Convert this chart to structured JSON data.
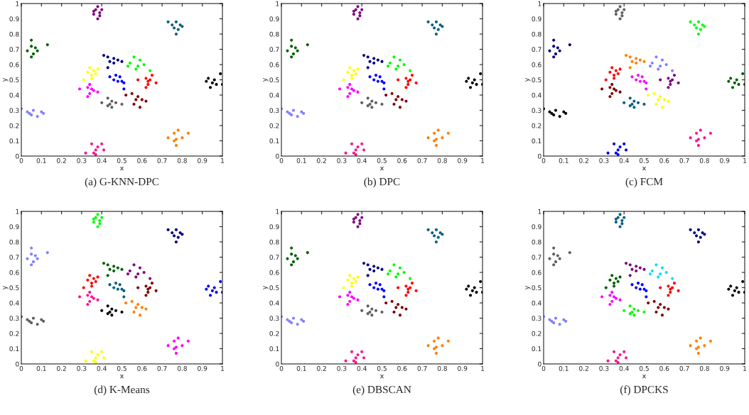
{
  "chart_data": [
    {
      "type": "scatter",
      "title": "(a) G-KNN-DPC",
      "xlabel": "x",
      "ylabel": "y",
      "xlim": [
        0,
        1
      ],
      "ylim": [
        0,
        1
      ],
      "xticks": [
        0,
        0.1,
        0.2,
        0.3,
        0.4,
        0.5,
        0.6,
        0.7,
        0.8,
        0.9,
        1
      ],
      "yticks": [
        0,
        0.1,
        0.2,
        0.3,
        0.4,
        0.5,
        0.6,
        0.7,
        0.8,
        0.9,
        1
      ],
      "marker": "circle",
      "grid": false,
      "legend": false,
      "series": [
        {
          "color": "#800080",
          "x": [
            0.36,
            0.37,
            0.38,
            0.39,
            0.4,
            0.38,
            0.36,
            0.39
          ],
          "values": [
            0.93,
            0.96,
            0.98,
            0.94,
            0.96,
            0.9,
            0.95,
            0.92
          ]
        },
        {
          "color": "#006080",
          "x": [
            0.75,
            0.76,
            0.77,
            0.78,
            0.79,
            0.77,
            0.73,
            0.8
          ],
          "values": [
            0.86,
            0.84,
            0.88,
            0.83,
            0.86,
            0.8,
            0.88,
            0.85
          ]
        },
        {
          "color": "#006000",
          "x": [
            0.03,
            0.05,
            0.06,
            0.07,
            0.08,
            0.05,
            0.05,
            0.13
          ],
          "values": [
            0.69,
            0.72,
            0.67,
            0.71,
            0.69,
            0.65,
            0.76,
            0.73
          ]
        },
        {
          "color": "#000080",
          "x": [
            0.41,
            0.43,
            0.44,
            0.46,
            0.48,
            0.43,
            0.46,
            0.5
          ],
          "values": [
            0.66,
            0.65,
            0.62,
            0.64,
            0.63,
            0.58,
            0.61,
            0.62
          ]
        },
        {
          "color": "#00ff00",
          "x": [
            0.54,
            0.56,
            0.58,
            0.59,
            0.61,
            0.57,
            0.53,
            0.64
          ],
          "values": [
            0.61,
            0.65,
            0.59,
            0.63,
            0.6,
            0.57,
            0.59,
            0.56
          ]
        },
        {
          "color": "#ffff00",
          "x": [
            0.33,
            0.34,
            0.35,
            0.36,
            0.37,
            0.35,
            0.38,
            0.31
          ],
          "values": [
            0.55,
            0.58,
            0.53,
            0.56,
            0.54,
            0.51,
            0.57,
            0.5
          ]
        },
        {
          "color": "#0000ff",
          "x": [
            0.44,
            0.46,
            0.48,
            0.49,
            0.51,
            0.47,
            0.5,
            0.51
          ],
          "values": [
            0.52,
            0.5,
            0.49,
            0.52,
            0.48,
            0.53,
            0.49,
            0.44
          ]
        },
        {
          "color": "#ff0000",
          "x": [
            0.58,
            0.62,
            0.63,
            0.64,
            0.67,
            0.62,
            0.65,
            0.63
          ],
          "values": [
            0.5,
            0.51,
            0.47,
            0.5,
            0.48,
            0.45,
            0.53,
            0.49
          ]
        },
        {
          "color": "#000000",
          "x": [
            0.92,
            0.93,
            0.95,
            0.96,
            0.97,
            0.94,
            0.99,
            1.0
          ],
          "values": [
            0.49,
            0.51,
            0.48,
            0.5,
            0.47,
            0.45,
            0.54,
            0.47
          ]
        },
        {
          "color": "#ff00ff",
          "x": [
            0.29,
            0.33,
            0.34,
            0.35,
            0.38,
            0.33,
            0.36,
            0.34
          ],
          "values": [
            0.44,
            0.45,
            0.41,
            0.44,
            0.42,
            0.39,
            0.43,
            0.47
          ]
        },
        {
          "color": "#800000",
          "x": [
            0.52,
            0.55,
            0.57,
            0.58,
            0.6,
            0.56,
            0.62,
            0.59
          ],
          "values": [
            0.4,
            0.41,
            0.37,
            0.39,
            0.37,
            0.34,
            0.36,
            0.32
          ]
        },
        {
          "color": "#606060",
          "x": [
            0.4,
            0.43,
            0.44,
            0.45,
            0.47,
            0.43,
            0.5,
            0.45
          ],
          "values": [
            0.35,
            0.38,
            0.34,
            0.36,
            0.35,
            0.33,
            0.34,
            0.32
          ]
        },
        {
          "color": "#8080ff",
          "x": [
            0.0,
            0.03,
            0.05,
            0.06,
            0.08,
            0.04,
            0.1,
            0.11
          ],
          "values": [
            0.31,
            0.29,
            0.27,
            0.3,
            0.26,
            0.28,
            0.29,
            0.28
          ]
        },
        {
          "color": "#ff8000",
          "x": [
            0.73,
            0.76,
            0.77,
            0.78,
            0.8,
            0.76,
            0.77,
            0.83
          ],
          "values": [
            0.12,
            0.15,
            0.11,
            0.17,
            0.12,
            0.1,
            0.07,
            0.15
          ]
        },
        {
          "color": "#ff1493",
          "x": [
            0.32,
            0.35,
            0.37,
            0.38,
            0.4,
            0.37,
            0.41,
            0.36
          ],
          "values": [
            0.02,
            0.08,
            0.04,
            0.06,
            0.08,
            0.01,
            0.04,
            0.02
          ]
        }
      ]
    },
    {
      "type": "scatter",
      "title": "(b) DPC",
      "xlabel": "x",
      "ylabel": "y",
      "xlim": [
        0,
        1
      ],
      "ylim": [
        0,
        1
      ],
      "xticks": [
        0,
        0.1,
        0.2,
        0.3,
        0.4,
        0.5,
        0.6,
        0.7,
        0.8,
        0.9,
        1
      ],
      "yticks": [
        0,
        0.1,
        0.2,
        0.3,
        0.4,
        0.5,
        0.6,
        0.7,
        0.8,
        0.9,
        1
      ],
      "marker": "circle",
      "grid": false,
      "legend": false,
      "series": [
        {
          "color": "#800080",
          "x": [
            0.36,
            0.37,
            0.38,
            0.39,
            0.4,
            0.38,
            0.36,
            0.39
          ],
          "values": [
            0.93,
            0.96,
            0.98,
            0.94,
            0.96,
            0.9,
            0.95,
            0.92
          ]
        },
        {
          "color": "#006080",
          "x": [
            0.75,
            0.76,
            0.77,
            0.78,
            0.79,
            0.77,
            0.73,
            0.8
          ],
          "values": [
            0.86,
            0.84,
            0.88,
            0.83,
            0.86,
            0.8,
            0.88,
            0.85
          ]
        },
        {
          "color": "#006000",
          "x": [
            0.03,
            0.05,
            0.06,
            0.07,
            0.08,
            0.05,
            0.05,
            0.13
          ],
          "values": [
            0.69,
            0.72,
            0.67,
            0.71,
            0.69,
            0.65,
            0.76,
            0.73
          ]
        },
        {
          "color": "#000080",
          "x": [
            0.41,
            0.43,
            0.44,
            0.46,
            0.48,
            0.43,
            0.46,
            0.5
          ],
          "values": [
            0.66,
            0.65,
            0.62,
            0.64,
            0.63,
            0.58,
            0.61,
            0.62
          ]
        },
        {
          "color": "#00ff00",
          "x": [
            0.54,
            0.56,
            0.58,
            0.59,
            0.61,
            0.57,
            0.53,
            0.64
          ],
          "values": [
            0.61,
            0.65,
            0.59,
            0.63,
            0.6,
            0.57,
            0.59,
            0.56
          ]
        },
        {
          "color": "#ffff00",
          "x": [
            0.33,
            0.34,
            0.35,
            0.36,
            0.37,
            0.35,
            0.38,
            0.31
          ],
          "values": [
            0.55,
            0.58,
            0.53,
            0.56,
            0.54,
            0.51,
            0.57,
            0.5
          ]
        },
        {
          "color": "#0000ff",
          "x": [
            0.44,
            0.46,
            0.48,
            0.49,
            0.51,
            0.47,
            0.5,
            0.51
          ],
          "values": [
            0.52,
            0.5,
            0.49,
            0.52,
            0.48,
            0.53,
            0.49,
            0.44
          ]
        },
        {
          "color": "#ff0000",
          "x": [
            0.58,
            0.62,
            0.63,
            0.64,
            0.67,
            0.62,
            0.65,
            0.63
          ],
          "values": [
            0.5,
            0.51,
            0.47,
            0.5,
            0.48,
            0.45,
            0.53,
            0.49
          ]
        },
        {
          "color": "#000000",
          "x": [
            0.92,
            0.93,
            0.95,
            0.96,
            0.97,
            0.94,
            0.99,
            1.0
          ],
          "values": [
            0.49,
            0.51,
            0.48,
            0.5,
            0.47,
            0.45,
            0.54,
            0.47
          ]
        },
        {
          "color": "#ff00ff",
          "x": [
            0.29,
            0.33,
            0.34,
            0.35,
            0.38,
            0.33,
            0.36,
            0.34
          ],
          "values": [
            0.44,
            0.45,
            0.41,
            0.44,
            0.42,
            0.39,
            0.43,
            0.47
          ]
        },
        {
          "color": "#800000",
          "x": [
            0.52,
            0.55,
            0.57,
            0.58,
            0.6,
            0.56,
            0.62,
            0.59
          ],
          "values": [
            0.4,
            0.41,
            0.37,
            0.39,
            0.37,
            0.34,
            0.36,
            0.32
          ]
        },
        {
          "color": "#606060",
          "x": [
            0.4,
            0.43,
            0.44,
            0.45,
            0.47,
            0.43,
            0.5,
            0.45
          ],
          "values": [
            0.35,
            0.38,
            0.34,
            0.36,
            0.35,
            0.33,
            0.34,
            0.32
          ]
        },
        {
          "color": "#8080ff",
          "x": [
            0.0,
            0.03,
            0.05,
            0.06,
            0.08,
            0.04,
            0.1,
            0.11
          ],
          "values": [
            0.31,
            0.29,
            0.27,
            0.3,
            0.26,
            0.28,
            0.29,
            0.28
          ]
        },
        {
          "color": "#ff8000",
          "x": [
            0.73,
            0.76,
            0.77,
            0.78,
            0.8,
            0.76,
            0.77,
            0.83
          ],
          "values": [
            0.12,
            0.15,
            0.11,
            0.17,
            0.12,
            0.1,
            0.07,
            0.15
          ]
        },
        {
          "color": "#ff1493",
          "x": [
            0.32,
            0.35,
            0.37,
            0.38,
            0.4,
            0.37,
            0.41,
            0.36
          ],
          "values": [
            0.02,
            0.08,
            0.04,
            0.06,
            0.08,
            0.01,
            0.04,
            0.02
          ]
        }
      ]
    },
    {
      "type": "scatter",
      "title": "(c) FCM",
      "xlabel": "x",
      "ylabel": "y",
      "xlim": [
        0,
        1
      ],
      "ylim": [
        0,
        1
      ],
      "xticks": [
        0,
        0.1,
        0.2,
        0.3,
        0.4,
        0.5,
        0.6,
        0.7,
        0.8,
        0.9,
        1
      ],
      "yticks": [
        0,
        0.1,
        0.2,
        0.3,
        0.4,
        0.5,
        0.6,
        0.7,
        0.8,
        0.9,
        1
      ],
      "marker": "circle",
      "grid": false,
      "legend": false,
      "series": [
        {
          "color": "#606060",
          "x": [
            0.36,
            0.37,
            0.38,
            0.39,
            0.4,
            0.38,
            0.36,
            0.39
          ],
          "values": [
            0.93,
            0.96,
            0.98,
            0.94,
            0.96,
            0.9,
            0.95,
            0.92
          ]
        },
        {
          "color": "#00ff00",
          "x": [
            0.75,
            0.76,
            0.77,
            0.78,
            0.79,
            0.77,
            0.73,
            0.8
          ],
          "values": [
            0.86,
            0.84,
            0.88,
            0.83,
            0.86,
            0.8,
            0.88,
            0.85
          ]
        },
        {
          "color": "#000080",
          "x": [
            0.03,
            0.05,
            0.06,
            0.07,
            0.08,
            0.05,
            0.05,
            0.13
          ],
          "values": [
            0.69,
            0.72,
            0.67,
            0.71,
            0.69,
            0.65,
            0.76,
            0.73
          ]
        },
        {
          "color": "#ff8000",
          "x": [
            0.41,
            0.43,
            0.44,
            0.46,
            0.48,
            0.43,
            0.46,
            0.5
          ],
          "values": [
            0.66,
            0.65,
            0.62,
            0.64,
            0.63,
            0.58,
            0.61,
            0.62
          ]
        },
        {
          "color": "#8080ff",
          "x": [
            0.54,
            0.56,
            0.58,
            0.59,
            0.61,
            0.57,
            0.53,
            0.64
          ],
          "values": [
            0.61,
            0.65,
            0.59,
            0.63,
            0.6,
            0.57,
            0.59,
            0.56
          ]
        },
        {
          "color": "#ff0000",
          "x": [
            0.33,
            0.34,
            0.35,
            0.36,
            0.37,
            0.35,
            0.38,
            0.31
          ],
          "values": [
            0.55,
            0.58,
            0.53,
            0.56,
            0.54,
            0.51,
            0.57,
            0.5
          ]
        },
        {
          "color": "#ff00ff",
          "x": [
            0.44,
            0.46,
            0.48,
            0.49,
            0.51,
            0.47,
            0.5,
            0.51
          ],
          "values": [
            0.52,
            0.5,
            0.49,
            0.52,
            0.48,
            0.53,
            0.49,
            0.44
          ]
        },
        {
          "color": "#800080",
          "x": [
            0.58,
            0.62,
            0.63,
            0.64,
            0.67,
            0.62,
            0.65,
            0.63
          ],
          "values": [
            0.5,
            0.51,
            0.47,
            0.5,
            0.48,
            0.45,
            0.53,
            0.49
          ]
        },
        {
          "color": "#006000",
          "x": [
            0.92,
            0.93,
            0.95,
            0.96,
            0.97,
            0.94,
            0.99,
            1.0
          ],
          "values": [
            0.49,
            0.51,
            0.48,
            0.5,
            0.47,
            0.45,
            0.54,
            0.47
          ]
        },
        {
          "color": "#800000",
          "x": [
            0.29,
            0.33,
            0.34,
            0.35,
            0.38,
            0.33,
            0.36,
            0.34
          ],
          "values": [
            0.44,
            0.45,
            0.41,
            0.44,
            0.42,
            0.39,
            0.43,
            0.47
          ]
        },
        {
          "color": "#ffff00",
          "x": [
            0.52,
            0.55,
            0.57,
            0.58,
            0.6,
            0.56,
            0.62,
            0.59
          ],
          "values": [
            0.4,
            0.41,
            0.37,
            0.39,
            0.37,
            0.34,
            0.36,
            0.32
          ]
        },
        {
          "color": "#006080",
          "x": [
            0.4,
            0.43,
            0.44,
            0.45,
            0.47,
            0.43,
            0.5,
            0.45
          ],
          "values": [
            0.35,
            0.38,
            0.34,
            0.36,
            0.35,
            0.33,
            0.34,
            0.32
          ]
        },
        {
          "color": "#000000",
          "x": [
            0.0,
            0.03,
            0.05,
            0.06,
            0.08,
            0.04,
            0.1,
            0.11
          ],
          "values": [
            0.31,
            0.29,
            0.27,
            0.3,
            0.26,
            0.28,
            0.29,
            0.28
          ]
        },
        {
          "color": "#ff1493",
          "x": [
            0.73,
            0.76,
            0.77,
            0.78,
            0.8,
            0.76,
            0.77,
            0.83
          ],
          "values": [
            0.12,
            0.15,
            0.11,
            0.17,
            0.12,
            0.1,
            0.07,
            0.15
          ]
        },
        {
          "color": "#0000ff",
          "x": [
            0.32,
            0.35,
            0.37,
            0.38,
            0.4,
            0.37,
            0.41,
            0.36
          ],
          "values": [
            0.02,
            0.08,
            0.04,
            0.06,
            0.08,
            0.01,
            0.04,
            0.02
          ]
        }
      ]
    },
    {
      "type": "scatter",
      "title": "(d) K-Means",
      "xlabel": "x",
      "ylabel": "y",
      "xlim": [
        0,
        1
      ],
      "ylim": [
        0,
        1
      ],
      "xticks": [
        0,
        0.1,
        0.2,
        0.3,
        0.4,
        0.5,
        0.6,
        0.7,
        0.8,
        0.9,
        1
      ],
      "yticks": [
        0,
        0.1,
        0.2,
        0.3,
        0.4,
        0.5,
        0.6,
        0.7,
        0.8,
        0.9,
        1
      ],
      "marker": "circle",
      "grid": false,
      "legend": false,
      "series": [
        {
          "color": "#00ff00",
          "x": [
            0.36,
            0.37,
            0.38,
            0.39,
            0.4,
            0.38,
            0.36,
            0.39
          ],
          "values": [
            0.93,
            0.96,
            0.98,
            0.94,
            0.96,
            0.9,
            0.95,
            0.92
          ]
        },
        {
          "color": "#000080",
          "x": [
            0.75,
            0.76,
            0.77,
            0.78,
            0.79,
            0.77,
            0.73,
            0.8
          ],
          "values": [
            0.86,
            0.84,
            0.88,
            0.83,
            0.86,
            0.8,
            0.88,
            0.85
          ]
        },
        {
          "color": "#8080ff",
          "x": [
            0.03,
            0.05,
            0.06,
            0.07,
            0.08,
            0.05,
            0.05,
            0.13
          ],
          "values": [
            0.69,
            0.72,
            0.67,
            0.71,
            0.69,
            0.65,
            0.76,
            0.73
          ]
        },
        {
          "color": "#006000",
          "x": [
            0.41,
            0.43,
            0.44,
            0.46,
            0.48,
            0.43,
            0.46,
            0.5
          ],
          "values": [
            0.66,
            0.65,
            0.62,
            0.64,
            0.63,
            0.58,
            0.61,
            0.62
          ]
        },
        {
          "color": "#800080",
          "x": [
            0.54,
            0.56,
            0.58,
            0.59,
            0.61,
            0.57,
            0.53,
            0.64
          ],
          "values": [
            0.61,
            0.65,
            0.59,
            0.63,
            0.6,
            0.57,
            0.59,
            0.56
          ]
        },
        {
          "color": "#ff0000",
          "x": [
            0.33,
            0.34,
            0.35,
            0.36,
            0.37,
            0.35,
            0.38,
            0.31
          ],
          "values": [
            0.55,
            0.58,
            0.53,
            0.56,
            0.54,
            0.51,
            0.57,
            0.5
          ]
        },
        {
          "color": "#006080",
          "x": [
            0.44,
            0.46,
            0.48,
            0.49,
            0.51,
            0.47,
            0.5,
            0.51
          ],
          "values": [
            0.52,
            0.5,
            0.49,
            0.52,
            0.48,
            0.53,
            0.49,
            0.44
          ]
        },
        {
          "color": "#800000",
          "x": [
            0.58,
            0.62,
            0.63,
            0.64,
            0.67,
            0.62,
            0.65,
            0.63
          ],
          "values": [
            0.5,
            0.51,
            0.47,
            0.5,
            0.48,
            0.45,
            0.53,
            0.49
          ]
        },
        {
          "color": "#0000ff",
          "x": [
            0.92,
            0.93,
            0.95,
            0.96,
            0.97,
            0.94,
            0.99,
            1.0
          ],
          "values": [
            0.49,
            0.51,
            0.48,
            0.5,
            0.47,
            0.45,
            0.54,
            0.47
          ]
        },
        {
          "color": "#ff1493",
          "x": [
            0.29,
            0.33,
            0.34,
            0.35,
            0.38,
            0.33,
            0.36,
            0.34
          ],
          "values": [
            0.44,
            0.45,
            0.41,
            0.44,
            0.42,
            0.39,
            0.43,
            0.47
          ]
        },
        {
          "color": "#ff8000",
          "x": [
            0.52,
            0.55,
            0.57,
            0.58,
            0.6,
            0.56,
            0.62,
            0.59
          ],
          "values": [
            0.4,
            0.41,
            0.37,
            0.39,
            0.37,
            0.34,
            0.36,
            0.32
          ]
        },
        {
          "color": "#000000",
          "x": [
            0.4,
            0.43,
            0.44,
            0.45,
            0.47,
            0.43,
            0.5,
            0.45
          ],
          "values": [
            0.35,
            0.38,
            0.34,
            0.36,
            0.35,
            0.33,
            0.34,
            0.32
          ]
        },
        {
          "color": "#606060",
          "x": [
            0.0,
            0.03,
            0.05,
            0.06,
            0.08,
            0.04,
            0.1,
            0.11
          ],
          "values": [
            0.31,
            0.29,
            0.27,
            0.3,
            0.26,
            0.28,
            0.29,
            0.28
          ]
        },
        {
          "color": "#ff00ff",
          "x": [
            0.73,
            0.76,
            0.77,
            0.78,
            0.8,
            0.76,
            0.77,
            0.83
          ],
          "values": [
            0.12,
            0.15,
            0.11,
            0.17,
            0.12,
            0.1,
            0.07,
            0.15
          ]
        },
        {
          "color": "#ffff00",
          "x": [
            0.32,
            0.35,
            0.37,
            0.38,
            0.4,
            0.37,
            0.41,
            0.36
          ],
          "values": [
            0.02,
            0.08,
            0.04,
            0.06,
            0.08,
            0.01,
            0.04,
            0.02
          ]
        }
      ]
    },
    {
      "type": "scatter",
      "title": "(e) DBSCAN",
      "xlabel": "x",
      "ylabel": "y",
      "xlim": [
        0,
        1
      ],
      "ylim": [
        0,
        1
      ],
      "xticks": [
        0,
        0.1,
        0.2,
        0.3,
        0.4,
        0.5,
        0.6,
        0.7,
        0.8,
        0.9,
        1
      ],
      "yticks": [
        0,
        0.1,
        0.2,
        0.3,
        0.4,
        0.5,
        0.6,
        0.7,
        0.8,
        0.9,
        1
      ],
      "marker": "circle",
      "grid": false,
      "legend": false,
      "series": [
        {
          "color": "#800080",
          "x": [
            0.36,
            0.37,
            0.38,
            0.39,
            0.4,
            0.38,
            0.36,
            0.39
          ],
          "values": [
            0.93,
            0.96,
            0.98,
            0.94,
            0.96,
            0.9,
            0.95,
            0.92
          ]
        },
        {
          "color": "#006080",
          "x": [
            0.75,
            0.76,
            0.77,
            0.78,
            0.79,
            0.77,
            0.73,
            0.8
          ],
          "values": [
            0.86,
            0.84,
            0.88,
            0.83,
            0.86,
            0.8,
            0.88,
            0.85
          ]
        },
        {
          "color": "#006000",
          "x": [
            0.03,
            0.05,
            0.06,
            0.07,
            0.08,
            0.05,
            0.05,
            0.13
          ],
          "values": [
            0.69,
            0.72,
            0.67,
            0.71,
            0.69,
            0.65,
            0.76,
            0.73
          ]
        },
        {
          "color": "#000080",
          "x": [
            0.41,
            0.43,
            0.44,
            0.46,
            0.48,
            0.43,
            0.46,
            0.5
          ],
          "values": [
            0.66,
            0.65,
            0.62,
            0.64,
            0.63,
            0.58,
            0.61,
            0.62
          ]
        },
        {
          "color": "#00ff00",
          "x": [
            0.54,
            0.56,
            0.58,
            0.59,
            0.61,
            0.57,
            0.53,
            0.64
          ],
          "values": [
            0.61,
            0.65,
            0.59,
            0.63,
            0.6,
            0.57,
            0.59,
            0.56
          ]
        },
        {
          "color": "#ffff00",
          "x": [
            0.33,
            0.34,
            0.35,
            0.36,
            0.37,
            0.35,
            0.38,
            0.31
          ],
          "values": [
            0.55,
            0.58,
            0.53,
            0.56,
            0.54,
            0.51,
            0.57,
            0.5
          ]
        },
        {
          "color": "#0000ff",
          "x": [
            0.44,
            0.46,
            0.48,
            0.49,
            0.51,
            0.47,
            0.5,
            0.51
          ],
          "values": [
            0.52,
            0.5,
            0.49,
            0.52,
            0.48,
            0.53,
            0.49,
            0.44
          ]
        },
        {
          "color": "#ff0000",
          "x": [
            0.58,
            0.62,
            0.63,
            0.64,
            0.67,
            0.62,
            0.65,
            0.63
          ],
          "values": [
            0.5,
            0.51,
            0.47,
            0.5,
            0.48,
            0.45,
            0.53,
            0.49
          ]
        },
        {
          "color": "#000000",
          "x": [
            0.92,
            0.93,
            0.95,
            0.96,
            0.97,
            0.94,
            0.99,
            1.0
          ],
          "values": [
            0.49,
            0.51,
            0.48,
            0.5,
            0.47,
            0.45,
            0.54,
            0.47
          ]
        },
        {
          "color": "#ff00ff",
          "x": [
            0.29,
            0.33,
            0.34,
            0.35,
            0.38,
            0.33,
            0.36,
            0.34
          ],
          "values": [
            0.44,
            0.45,
            0.41,
            0.44,
            0.42,
            0.39,
            0.43,
            0.47
          ]
        },
        {
          "color": "#800000",
          "x": [
            0.52,
            0.55,
            0.57,
            0.58,
            0.6,
            0.56,
            0.62,
            0.59
          ],
          "values": [
            0.4,
            0.41,
            0.37,
            0.39,
            0.37,
            0.34,
            0.36,
            0.32
          ]
        },
        {
          "color": "#606060",
          "x": [
            0.4,
            0.43,
            0.44,
            0.45,
            0.47,
            0.43,
            0.5,
            0.45
          ],
          "values": [
            0.35,
            0.38,
            0.34,
            0.36,
            0.35,
            0.33,
            0.34,
            0.32
          ]
        },
        {
          "color": "#8080ff",
          "x": [
            0.0,
            0.03,
            0.05,
            0.06,
            0.08,
            0.04,
            0.1,
            0.11
          ],
          "values": [
            0.31,
            0.29,
            0.27,
            0.3,
            0.26,
            0.28,
            0.29,
            0.28
          ]
        },
        {
          "color": "#ff8000",
          "x": [
            0.73,
            0.76,
            0.77,
            0.78,
            0.8,
            0.76,
            0.77,
            0.83
          ],
          "values": [
            0.12,
            0.15,
            0.11,
            0.17,
            0.12,
            0.1,
            0.07,
            0.15
          ]
        },
        {
          "color": "#ff1493",
          "x": [
            0.32,
            0.35,
            0.37,
            0.38,
            0.4,
            0.37,
            0.41,
            0.36
          ],
          "values": [
            0.02,
            0.08,
            0.04,
            0.06,
            0.08,
            0.01,
            0.04,
            0.02
          ]
        }
      ]
    },
    {
      "type": "scatter",
      "title": "(f) DPCKS",
      "xlabel": "x",
      "ylabel": "y",
      "xlim": [
        0,
        1
      ],
      "ylim": [
        0,
        1
      ],
      "xticks": [
        0,
        0.1,
        0.2,
        0.3,
        0.4,
        0.5,
        0.6,
        0.7,
        0.8,
        0.9,
        1
      ],
      "yticks": [
        0,
        0.1,
        0.2,
        0.3,
        0.4,
        0.5,
        0.6,
        0.7,
        0.8,
        0.9,
        1
      ],
      "marker": "circle",
      "grid": false,
      "legend": false,
      "series": [
        {
          "color": "#006080",
          "x": [
            0.36,
            0.37,
            0.38,
            0.39,
            0.4,
            0.38,
            0.36,
            0.39
          ],
          "values": [
            0.93,
            0.96,
            0.98,
            0.94,
            0.96,
            0.9,
            0.95,
            0.92
          ]
        },
        {
          "color": "#000080",
          "x": [
            0.75,
            0.76,
            0.77,
            0.78,
            0.79,
            0.77,
            0.73,
            0.8
          ],
          "values": [
            0.86,
            0.84,
            0.88,
            0.83,
            0.86,
            0.8,
            0.88,
            0.85
          ]
        },
        {
          "color": "#606060",
          "x": [
            0.03,
            0.05,
            0.06,
            0.07,
            0.08,
            0.05,
            0.05,
            0.13
          ],
          "values": [
            0.69,
            0.72,
            0.67,
            0.71,
            0.69,
            0.65,
            0.76,
            0.73
          ]
        },
        {
          "color": "#800080",
          "x": [
            0.41,
            0.43,
            0.44,
            0.46,
            0.48,
            0.43,
            0.46,
            0.5
          ],
          "values": [
            0.66,
            0.65,
            0.62,
            0.64,
            0.63,
            0.58,
            0.61,
            0.62
          ]
        },
        {
          "color": "#00e0ff",
          "x": [
            0.54,
            0.56,
            0.58,
            0.59,
            0.61,
            0.57,
            0.53,
            0.64
          ],
          "values": [
            0.61,
            0.65,
            0.59,
            0.63,
            0.6,
            0.57,
            0.59,
            0.56
          ]
        },
        {
          "color": "#006000",
          "x": [
            0.33,
            0.34,
            0.35,
            0.36,
            0.37,
            0.35,
            0.38,
            0.31
          ],
          "values": [
            0.55,
            0.58,
            0.53,
            0.56,
            0.54,
            0.51,
            0.57,
            0.5
          ]
        },
        {
          "color": "#0000ff",
          "x": [
            0.44,
            0.46,
            0.48,
            0.49,
            0.51,
            0.47,
            0.5,
            0.51
          ],
          "values": [
            0.52,
            0.5,
            0.49,
            0.52,
            0.48,
            0.53,
            0.49,
            0.44
          ]
        },
        {
          "color": "#ff0000",
          "x": [
            0.58,
            0.62,
            0.63,
            0.64,
            0.67,
            0.62,
            0.65,
            0.63
          ],
          "values": [
            0.5,
            0.51,
            0.47,
            0.5,
            0.48,
            0.45,
            0.53,
            0.49
          ]
        },
        {
          "color": "#000000",
          "x": [
            0.92,
            0.93,
            0.95,
            0.96,
            0.97,
            0.94,
            0.99,
            1.0
          ],
          "values": [
            0.49,
            0.51,
            0.48,
            0.5,
            0.47,
            0.45,
            0.54,
            0.47
          ]
        },
        {
          "color": "#ff00ff",
          "x": [
            0.29,
            0.33,
            0.34,
            0.35,
            0.38,
            0.33,
            0.36,
            0.34
          ],
          "values": [
            0.44,
            0.45,
            0.41,
            0.44,
            0.42,
            0.39,
            0.43,
            0.47
          ]
        },
        {
          "color": "#800000",
          "x": [
            0.52,
            0.55,
            0.57,
            0.58,
            0.6,
            0.56,
            0.62,
            0.59
          ],
          "values": [
            0.4,
            0.41,
            0.37,
            0.39,
            0.37,
            0.34,
            0.36,
            0.32
          ]
        },
        {
          "color": "#00ff00",
          "x": [
            0.4,
            0.43,
            0.44,
            0.45,
            0.47,
            0.43,
            0.5,
            0.45
          ],
          "values": [
            0.35,
            0.38,
            0.34,
            0.36,
            0.35,
            0.33,
            0.34,
            0.32
          ]
        },
        {
          "color": "#8080ff",
          "x": [
            0.0,
            0.03,
            0.05,
            0.06,
            0.08,
            0.04,
            0.1,
            0.11
          ],
          "values": [
            0.31,
            0.29,
            0.27,
            0.3,
            0.26,
            0.28,
            0.29,
            0.28
          ]
        },
        {
          "color": "#ff8000",
          "x": [
            0.73,
            0.76,
            0.77,
            0.78,
            0.8,
            0.76,
            0.77,
            0.83
          ],
          "values": [
            0.12,
            0.15,
            0.11,
            0.17,
            0.12,
            0.1,
            0.07,
            0.15
          ]
        },
        {
          "color": "#ff1493",
          "x": [
            0.32,
            0.35,
            0.37,
            0.38,
            0.4,
            0.37,
            0.41,
            0.36
          ],
          "values": [
            0.02,
            0.08,
            0.04,
            0.06,
            0.08,
            0.01,
            0.04,
            0.02
          ]
        }
      ]
    }
  ]
}
